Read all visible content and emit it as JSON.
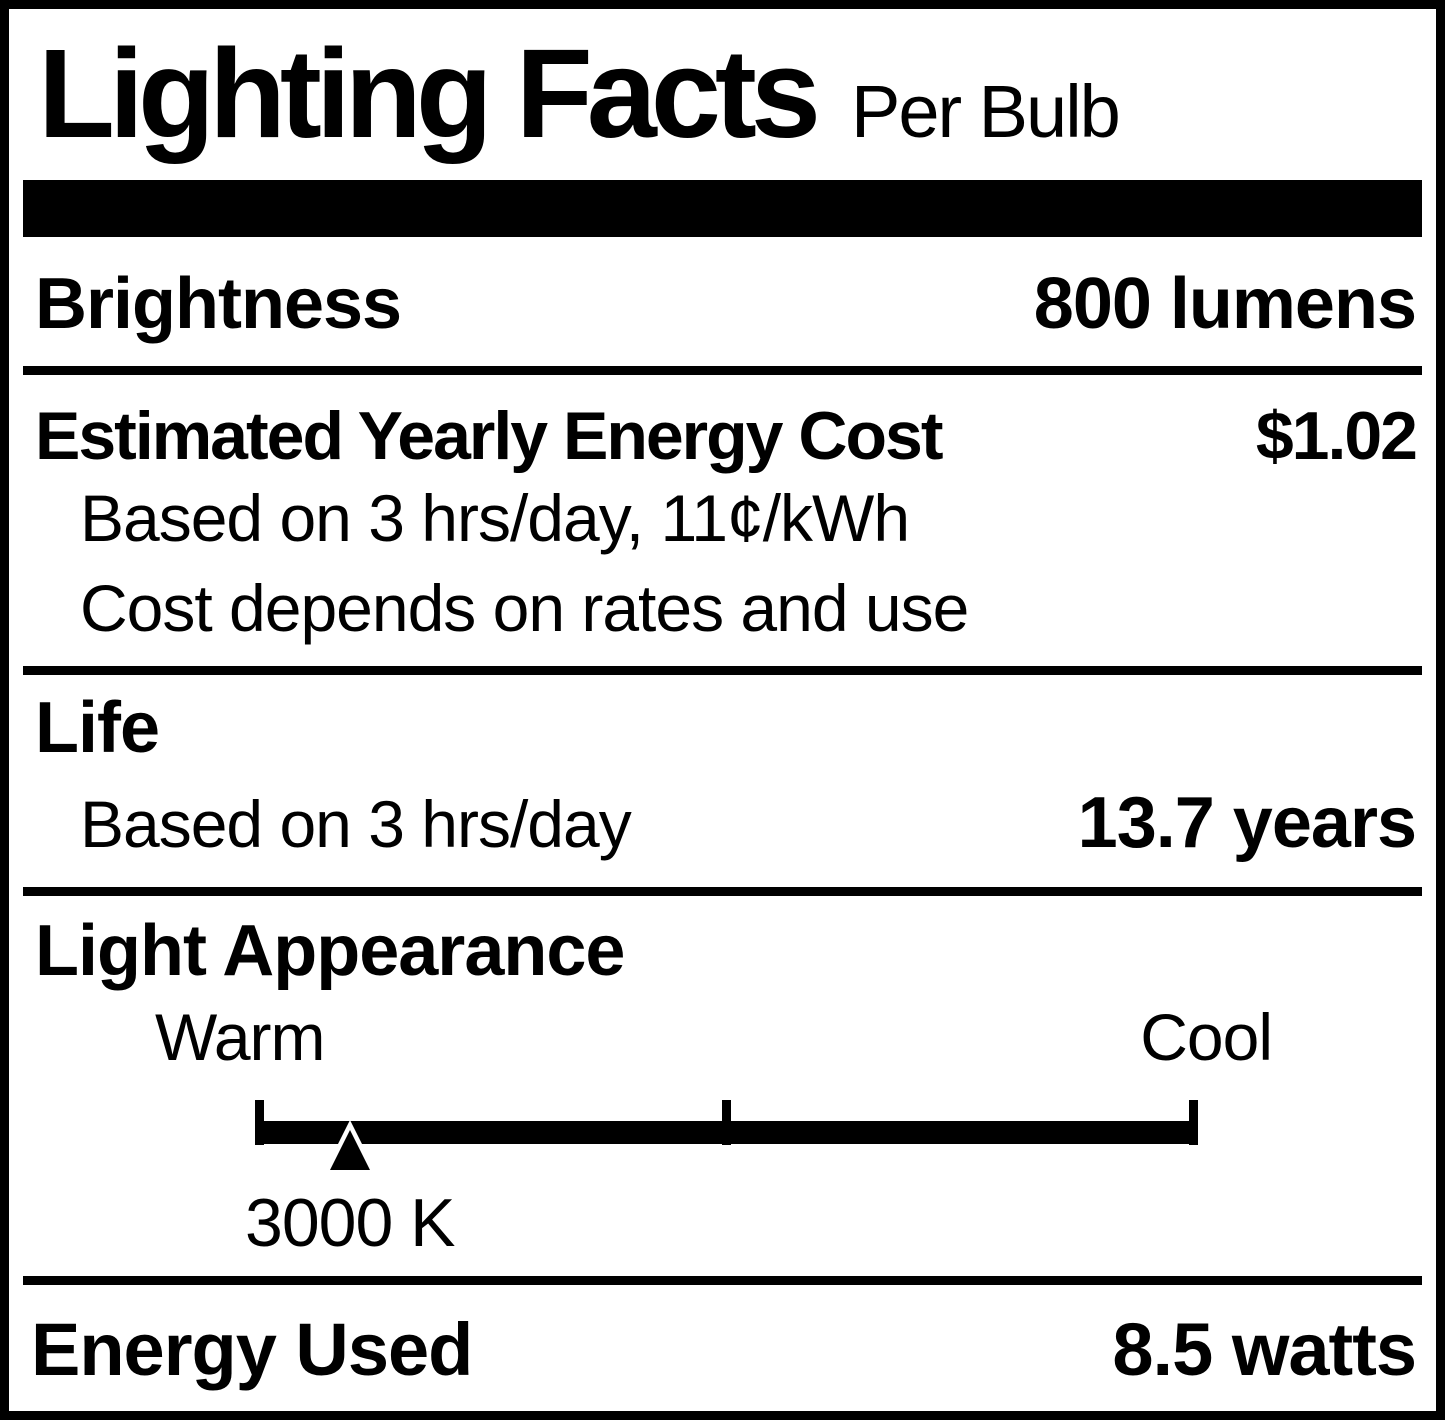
{
  "label": {
    "title": "Lighting Facts",
    "subtitle": "Per Bulb",
    "brightness": {
      "name": "Brightness",
      "value": "800 lumens"
    },
    "energy_cost": {
      "name": "Estimated Yearly Energy Cost",
      "value": "$1.02",
      "note1": "Based on 3 hrs/day, 11¢/kWh",
      "note2": "Cost depends on rates and use"
    },
    "life": {
      "name": "Life",
      "basis": "Based on 3 hrs/day",
      "value": "13.7 years"
    },
    "light_appearance": {
      "name": "Light Appearance",
      "warm_label": "Warm",
      "cool_label": "Cool",
      "temperature": "3000 K",
      "marker_position_pct": 10.1
    },
    "energy_used": {
      "name": "Energy Used",
      "value": "8.5 watts"
    }
  },
  "colors": {
    "ink": "#000000",
    "background": "#ffffff"
  }
}
